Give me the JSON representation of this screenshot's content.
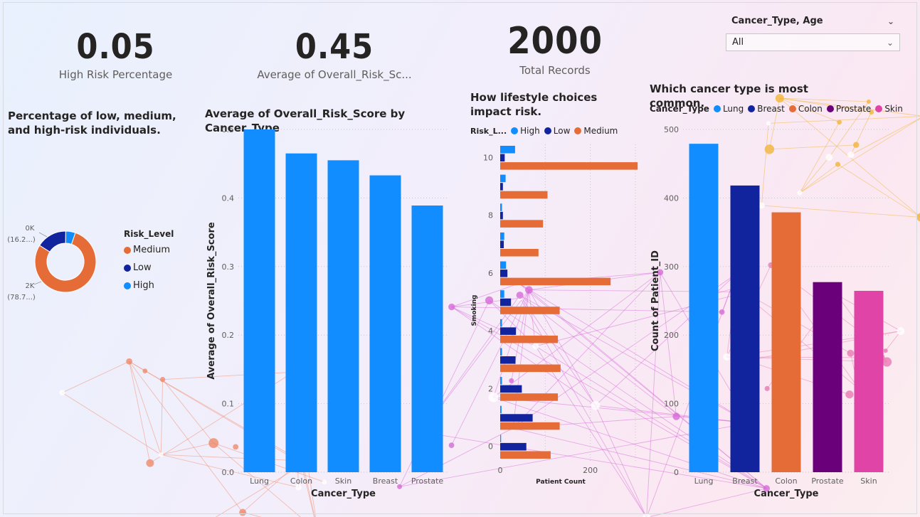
{
  "kpis": [
    {
      "value": "0.05",
      "label": "High Risk Percentage"
    },
    {
      "value": "0.45",
      "label": "Average of Overall_Risk_Sc..."
    },
    {
      "value": "2000",
      "label": "Total Records"
    }
  ],
  "slicer": {
    "title": "Cancer_Type, Age",
    "selected": "All"
  },
  "titles": {
    "donut": "Percentage of low, medium, and high-risk individuals.",
    "bar_risk": "Average of Overall_Risk_Score by Cancer_Type",
    "lifestyle": "How lifestyle choices impact risk.",
    "common": "Which cancer type is most common."
  },
  "colors": {
    "high": "#118dff",
    "low": "#12239e",
    "medium": "#e66c37",
    "prostate": "#6b007b",
    "skin": "#e044a7"
  },
  "chart_data": [
    {
      "type": "pie",
      "title": "Percentage of low, medium, and high-risk individuals.",
      "legend_title": "Risk_Level",
      "legend_position": "right",
      "categories": [
        "Medium",
        "Low",
        "High"
      ],
      "values": [
        78.7,
        16.2,
        5.1
      ],
      "data_labels": [
        {
          "category": "Low",
          "line1": "0K",
          "line2": "(16.2...)"
        },
        {
          "category": "Medium",
          "line1": "2K",
          "line2": "(78.7...)"
        }
      ]
    },
    {
      "type": "bar",
      "title": "Average of Overall_Risk_Score by Cancer_Type",
      "xlabel": "Cancer_Type",
      "ylabel": "Average of Overall_Risk_Score",
      "categories": [
        "Lung",
        "Colon",
        "Skin",
        "Breast",
        "Prostate"
      ],
      "values": [
        0.5,
        0.465,
        0.455,
        0.433,
        0.389
      ],
      "ylim": [
        0,
        0.5
      ],
      "yticks": [
        "0.0",
        "0.1",
        "0.2",
        "0.3",
        "0.4",
        "0.5"
      ],
      "grid": true
    },
    {
      "type": "bar",
      "orientation": "horizontal",
      "title": "How lifestyle choices impact risk.",
      "legend_title": "Risk_L...",
      "legend_position": "top-left",
      "xlabel": "Patient Count",
      "ylabel": "Smoking",
      "categories": [
        10,
        9,
        8,
        7,
        6,
        5,
        4,
        3,
        2,
        1,
        0
      ],
      "ytick_labels": [
        "10",
        "8",
        "6",
        "4",
        "2",
        "0"
      ],
      "xticks": [
        "0",
        "200"
      ],
      "xlim": [
        0,
        300
      ],
      "series": [
        {
          "name": "High",
          "values": [
            33,
            12,
            4,
            9,
            13,
            9,
            4,
            4,
            4,
            3,
            2
          ]
        },
        {
          "name": "Low",
          "values": [
            10,
            6,
            6,
            8,
            16,
            24,
            35,
            34,
            48,
            72,
            58
          ]
        },
        {
          "name": "Medium",
          "values": [
            305,
            105,
            95,
            85,
            245,
            132,
            128,
            134,
            128,
            132,
            112
          ]
        }
      ]
    },
    {
      "type": "bar",
      "title": "Which cancer type is most common.",
      "legend_title": "Cancer_Type",
      "legend_position": "top-left",
      "xlabel": "Cancer_Type",
      "ylabel": "Count of Patient_ID",
      "categories": [
        "Lung",
        "Breast",
        "Colon",
        "Prostate",
        "Skin"
      ],
      "values": [
        527,
        460,
        417,
        305,
        291
      ],
      "ylim": [
        0,
        550
      ],
      "yticks": [
        "0",
        "100",
        "200",
        "300",
        "400",
        "500"
      ],
      "grid": true
    }
  ]
}
